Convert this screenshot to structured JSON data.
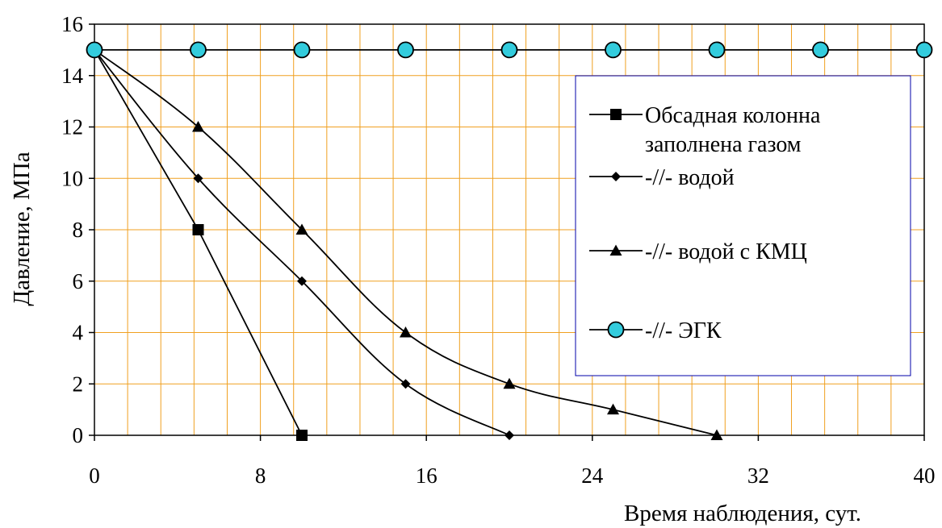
{
  "chart_data": {
    "type": "line",
    "title": "",
    "xlabel": "Время наблюдения, сут.",
    "ylabel": "Давление, МПа",
    "xlim": [
      0,
      40
    ],
    "ylim": [
      0,
      16
    ],
    "x_ticks": [
      0,
      8,
      16,
      24,
      32,
      40
    ],
    "y_ticks": [
      0,
      2,
      4,
      6,
      8,
      10,
      12,
      14,
      16
    ],
    "x_minor_step": 1.6,
    "grid": true,
    "legend_position": "right",
    "colors": {
      "grid": "#f0a020",
      "line": "#000000",
      "marker_egk": "#33ccdd",
      "legend_border": "#0000aa"
    },
    "series": [
      {
        "name": "Обсадная колонна заполнена газом",
        "marker": "square",
        "x": [
          0,
          5,
          10
        ],
        "y": [
          15,
          8,
          0
        ]
      },
      {
        "name": "-//-  водой",
        "marker": "diamond",
        "x": [
          0,
          5,
          10,
          15,
          20
        ],
        "y": [
          15,
          10,
          6,
          2,
          0
        ]
      },
      {
        "name": "-//- водой с КМЦ",
        "marker": "triangle",
        "x": [
          0,
          5,
          10,
          15,
          20,
          25,
          30
        ],
        "y": [
          15,
          12,
          8,
          4,
          2,
          1,
          0
        ]
      },
      {
        "name": "-//- ЭГК",
        "marker": "circle",
        "x": [
          0,
          5,
          10,
          15,
          20,
          25,
          30,
          35,
          40
        ],
        "y": [
          15,
          15,
          15,
          15,
          15,
          15,
          15,
          15,
          15
        ]
      }
    ],
    "legend": {
      "lines": [
        [
          "Обсадная колонна",
          "заполнена газом"
        ],
        [
          "-//-  водой"
        ],
        [
          "-//- водой с КМЦ"
        ],
        [
          "-//- ЭГК"
        ]
      ]
    }
  }
}
